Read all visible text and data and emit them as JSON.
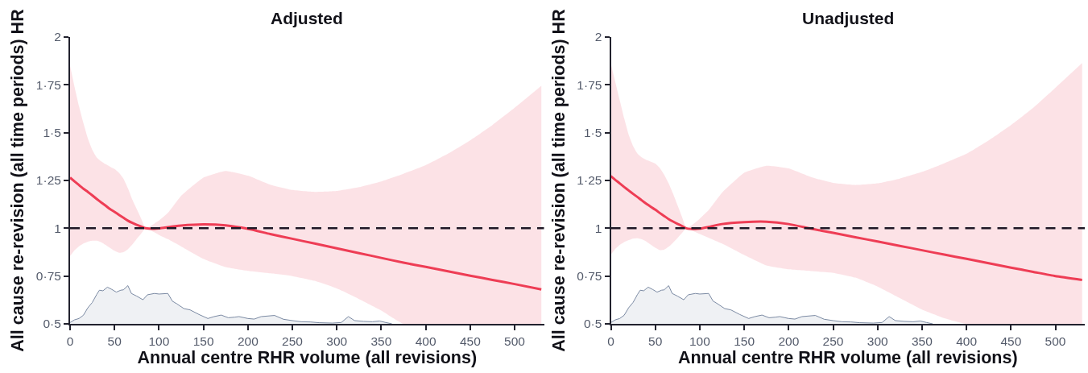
{
  "chart_data": [
    {
      "type": "line",
      "title": "Adjusted",
      "xlabel": "Annual centre RHR volume (all revisions)",
      "ylabel": "All cause re-revision (all time periods) HR",
      "xlim": [
        0,
        533
      ],
      "xticks": [
        0,
        50,
        100,
        150,
        200,
        250,
        300,
        350,
        400,
        450,
        500
      ],
      "ylim": [
        0.5,
        2
      ],
      "yticks": [
        {
          "value": 0.5,
          "label": "0·5"
        },
        {
          "value": 0.75,
          "label": "0·75"
        },
        {
          "value": 1,
          "label": "1"
        },
        {
          "value": 1.25,
          "label": "1·25"
        },
        {
          "value": 1.5,
          "label": "1·5"
        },
        {
          "value": 1.75,
          "label": "1·75"
        },
        {
          "value": 2,
          "label": "2"
        }
      ],
      "x": [
        0,
        5,
        10,
        15,
        20,
        25,
        30,
        35,
        40,
        45,
        50,
        55,
        60,
        65,
        70,
        75,
        80,
        85,
        95,
        100,
        110,
        125,
        150,
        175,
        200,
        225,
        250,
        275,
        300,
        325,
        350,
        375,
        400,
        425,
        450,
        475,
        500,
        530
      ],
      "series": [
        {
          "type": "area",
          "color": "#7b8aa3",
          "x": [
            0,
            5,
            10,
            15,
            20,
            25,
            30,
            33,
            37,
            42,
            47,
            52,
            57,
            60,
            65,
            69,
            75,
            82,
            87,
            95,
            100,
            110,
            115,
            120,
            128,
            135,
            145,
            155,
            162,
            170,
            178,
            185,
            190,
            200,
            207,
            215,
            230,
            240,
            250,
            260,
            270,
            280,
            295,
            305,
            313,
            320,
            330,
            340,
            348,
            355,
            362
          ],
          "values": [
            0.507,
            0.521,
            0.528,
            0.545,
            0.584,
            0.612,
            0.654,
            0.676,
            0.673,
            0.692,
            0.68,
            0.666,
            0.676,
            0.678,
            0.7,
            0.659,
            0.645,
            0.626,
            0.652,
            0.659,
            0.656,
            0.659,
            0.619,
            0.605,
            0.58,
            0.573,
            0.549,
            0.528,
            0.538,
            0.546,
            0.532,
            0.535,
            0.538,
            0.528,
            0.525,
            0.538,
            0.544,
            0.524,
            0.517,
            0.511,
            0.51,
            0.506,
            0.504,
            0.507,
            0.538,
            0.517,
            0.513,
            0.511,
            0.515,
            0.507,
            0.5
          ]
        },
        {
          "color": "#ee3d55",
          "values": [
            1.265,
            1.245,
            1.226,
            1.207,
            1.19,
            1.172,
            1.153,
            1.135,
            1.118,
            1.1,
            1.086,
            1.07,
            1.055,
            1.04,
            1.028,
            1.018,
            1.009,
            1.0,
            0.997,
            0.999,
            1.006,
            1.014,
            1.02,
            1.015,
            0.997,
            0.97,
            0.945,
            0.92,
            0.895,
            0.87,
            0.845,
            0.82,
            0.798,
            0.775,
            0.752,
            0.73,
            0.708,
            0.68
          ],
          "upper": [
            1.85,
            1.74,
            1.64,
            1.55,
            1.47,
            1.41,
            1.37,
            1.35,
            1.335,
            1.322,
            1.31,
            1.29,
            1.26,
            1.21,
            1.15,
            1.1,
            1.05,
            1.0,
            1.025,
            1.04,
            1.08,
            1.17,
            1.265,
            1.3,
            1.275,
            1.228,
            1.2,
            1.19,
            1.195,
            1.215,
            1.245,
            1.285,
            1.33,
            1.39,
            1.46,
            1.54,
            1.63,
            1.745
          ],
          "lower": [
            0.855,
            0.885,
            0.905,
            0.92,
            0.93,
            0.935,
            0.935,
            0.927,
            0.913,
            0.897,
            0.882,
            0.872,
            0.875,
            0.89,
            0.915,
            0.945,
            0.972,
            1.0,
            0.978,
            0.965,
            0.943,
            0.905,
            0.84,
            0.797,
            0.777,
            0.764,
            0.75,
            0.725,
            0.685,
            0.63,
            0.57,
            0.5,
            0.5,
            0.5,
            0.5,
            0.5,
            0.5,
            0.5
          ]
        }
      ],
      "ref_lines": [
        {
          "axis": "y",
          "value": 1,
          "color": "#1f1826",
          "line_style": "dashed"
        }
      ]
    },
    {
      "type": "line",
      "title": "Unadjusted",
      "xlabel": "Annual centre RHR volume (all revisions)",
      "ylabel": "All cause re-revision (all time periods) HR",
      "xlim": [
        0,
        533
      ],
      "xticks": [
        0,
        50,
        100,
        150,
        200,
        250,
        300,
        350,
        400,
        450,
        500
      ],
      "ylim": [
        0.5,
        2
      ],
      "yticks": [
        {
          "value": 0.5,
          "label": "0·5"
        },
        {
          "value": 0.75,
          "label": "0·75"
        },
        {
          "value": 1,
          "label": "1"
        },
        {
          "value": 1.25,
          "label": "1·25"
        },
        {
          "value": 1.5,
          "label": "1·5"
        },
        {
          "value": 1.75,
          "label": "1·75"
        },
        {
          "value": 2,
          "label": "2"
        }
      ],
      "x": [
        0,
        5,
        10,
        15,
        20,
        25,
        30,
        35,
        40,
        45,
        50,
        55,
        60,
        65,
        70,
        75,
        80,
        85,
        95,
        100,
        110,
        125,
        150,
        175,
        200,
        225,
        250,
        275,
        300,
        325,
        350,
        375,
        400,
        425,
        450,
        475,
        500,
        530
      ],
      "series": [
        {
          "type": "area",
          "color": "#7b8aa3",
          "x": [
            0,
            5,
            10,
            15,
            20,
            25,
            30,
            33,
            37,
            42,
            47,
            52,
            57,
            60,
            65,
            69,
            75,
            82,
            87,
            95,
            100,
            110,
            115,
            120,
            128,
            135,
            145,
            155,
            162,
            170,
            178,
            185,
            190,
            200,
            207,
            215,
            230,
            240,
            250,
            260,
            270,
            280,
            295,
            305,
            313,
            320,
            330,
            340,
            348,
            355,
            362
          ],
          "values": [
            0.507,
            0.521,
            0.528,
            0.545,
            0.584,
            0.612,
            0.654,
            0.676,
            0.673,
            0.692,
            0.68,
            0.666,
            0.676,
            0.678,
            0.7,
            0.659,
            0.645,
            0.626,
            0.652,
            0.659,
            0.656,
            0.659,
            0.619,
            0.605,
            0.58,
            0.573,
            0.549,
            0.528,
            0.538,
            0.546,
            0.532,
            0.535,
            0.538,
            0.528,
            0.525,
            0.538,
            0.544,
            0.524,
            0.517,
            0.511,
            0.51,
            0.506,
            0.504,
            0.507,
            0.538,
            0.517,
            0.513,
            0.511,
            0.515,
            0.507,
            0.5
          ]
        },
        {
          "color": "#ee3d55",
          "values": [
            1.273,
            1.253,
            1.235,
            1.216,
            1.198,
            1.18,
            1.163,
            1.145,
            1.128,
            1.112,
            1.097,
            1.08,
            1.064,
            1.048,
            1.035,
            1.023,
            1.012,
            1.0,
            0.996,
            0.998,
            1.007,
            1.022,
            1.032,
            1.034,
            1.022,
            0.998,
            0.976,
            0.953,
            0.931,
            0.908,
            0.885,
            0.862,
            0.84,
            0.817,
            0.794,
            0.772,
            0.75,
            0.73
          ],
          "upper": [
            1.86,
            1.765,
            1.67,
            1.575,
            1.49,
            1.43,
            1.39,
            1.37,
            1.357,
            1.348,
            1.338,
            1.315,
            1.28,
            1.235,
            1.18,
            1.12,
            1.06,
            1.0,
            1.03,
            1.05,
            1.095,
            1.186,
            1.29,
            1.327,
            1.313,
            1.268,
            1.237,
            1.226,
            1.235,
            1.26,
            1.295,
            1.34,
            1.39,
            1.46,
            1.54,
            1.63,
            1.735,
            1.864
          ],
          "lower": [
            0.862,
            0.892,
            0.913,
            0.928,
            0.938,
            0.946,
            0.948,
            0.942,
            0.93,
            0.914,
            0.898,
            0.886,
            0.888,
            0.903,
            0.925,
            0.949,
            0.975,
            1.0,
            0.98,
            0.97,
            0.95,
            0.92,
            0.86,
            0.805,
            0.785,
            0.776,
            0.767,
            0.742,
            0.695,
            0.635,
            0.575,
            0.53,
            0.5,
            0.5,
            0.5,
            0.5,
            0.5,
            0.5
          ]
        }
      ],
      "ref_lines": [
        {
          "axis": "y",
          "value": 1,
          "color": "#1f1826",
          "line_style": "dashed"
        }
      ]
    }
  ]
}
